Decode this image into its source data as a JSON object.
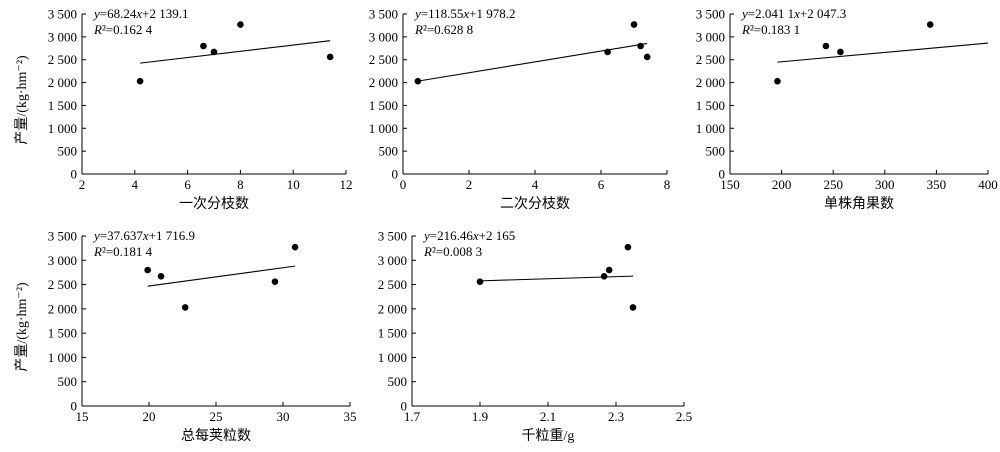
{
  "chart_data": [
    {
      "type": "scatter",
      "xlabel": "一次分枝数",
      "ylabel": "产量/(kg·hm⁻²)",
      "xlim": [
        2,
        12
      ],
      "ylim": [
        0,
        3500
      ],
      "xticks": [
        2,
        4,
        6,
        8,
        10,
        12
      ],
      "xtick_labels": [
        "2",
        "4",
        "6",
        "8",
        "10",
        "12"
      ],
      "yticks": [
        0,
        500,
        1000,
        1500,
        2000,
        2500,
        3000,
        3500
      ],
      "ytick_labels": [
        "0",
        "500",
        "1 000",
        "1 500",
        "2 000",
        "2 500",
        "3 000",
        "3 500"
      ],
      "points": [
        {
          "x": 4.2,
          "y": 2030
        },
        {
          "x": 6.6,
          "y": 2800
        },
        {
          "x": 7.0,
          "y": 2670
        },
        {
          "x": 8.0,
          "y": 3270
        },
        {
          "x": 11.4,
          "y": 2560
        }
      ],
      "fit": {
        "slope": 68.24,
        "intercept": 2139.1,
        "x_range": [
          4.2,
          11.4
        ]
      },
      "equation": "y=68.24x+2 139.1",
      "r2": "R²=0.162 4"
    },
    {
      "type": "scatter",
      "xlabel": "二次分枝数",
      "ylabel": "",
      "xlim": [
        0,
        8
      ],
      "ylim": [
        0,
        3500
      ],
      "xticks": [
        0,
        2,
        4,
        6,
        8
      ],
      "xtick_labels": [
        "0",
        "2",
        "4",
        "6",
        "8"
      ],
      "yticks": [
        0,
        500,
        1000,
        1500,
        2000,
        2500,
        3000,
        3500
      ],
      "ytick_labels": [
        "0",
        "500",
        "1 000",
        "1 500",
        "2 000",
        "2 500",
        "3 000",
        "3 500"
      ],
      "points": [
        {
          "x": 0.45,
          "y": 2030
        },
        {
          "x": 6.2,
          "y": 2670
        },
        {
          "x": 7.0,
          "y": 3270
        },
        {
          "x": 7.2,
          "y": 2800
        },
        {
          "x": 7.4,
          "y": 2560
        }
      ],
      "fit": {
        "slope": 118.55,
        "intercept": 1978.2,
        "x_range": [
          0.45,
          7.4
        ]
      },
      "equation": "y=118.55x+1 978.2",
      "r2": "R²=0.628 8"
    },
    {
      "type": "scatter",
      "xlabel": "单株角果数",
      "ylabel": "",
      "xlim": [
        150,
        400
      ],
      "ylim": [
        0,
        3500
      ],
      "xticks": [
        150,
        200,
        250,
        300,
        350,
        400
      ],
      "xtick_labels": [
        "150",
        "200",
        "250",
        "300",
        "350",
        "400"
      ],
      "yticks": [
        0,
        500,
        1000,
        1500,
        2000,
        2500,
        3000,
        3500
      ],
      "ytick_labels": [
        "0",
        "500",
        "1 000",
        "1 500",
        "2 000",
        "2 500",
        "3 000",
        "3 500"
      ],
      "points": [
        {
          "x": 196,
          "y": 2030
        },
        {
          "x": 243,
          "y": 2800
        },
        {
          "x": 257,
          "y": 2670
        },
        {
          "x": 344,
          "y": 3270
        }
      ],
      "fit": {
        "slope": 2.0411,
        "intercept": 2047.3,
        "x_range": [
          196,
          400
        ]
      },
      "equation": "y=2.041 1x+2 047.3",
      "r2": "R²=0.183 1"
    },
    {
      "type": "scatter",
      "xlabel": "总每荚粒数",
      "ylabel": "产量/(kg·hm⁻²)",
      "xlim": [
        15,
        35
      ],
      "ylim": [
        0,
        3500
      ],
      "xticks": [
        15,
        20,
        25,
        30,
        35
      ],
      "xtick_labels": [
        "15",
        "20",
        "25",
        "30",
        "35"
      ],
      "yticks": [
        0,
        500,
        1000,
        1500,
        2000,
        2500,
        3000,
        3500
      ],
      "ytick_labels": [
        "0",
        "500",
        "1 000",
        "1 500",
        "2 000",
        "2 500",
        "3 000",
        "3 500"
      ],
      "points": [
        {
          "x": 19.9,
          "y": 2800
        },
        {
          "x": 20.9,
          "y": 2670
        },
        {
          "x": 22.7,
          "y": 2030
        },
        {
          "x": 29.4,
          "y": 2560
        },
        {
          "x": 30.9,
          "y": 3270
        }
      ],
      "fit": {
        "slope": 37.637,
        "intercept": 1716.9,
        "x_range": [
          19.9,
          30.9
        ]
      },
      "equation": "y=37.637x+1 716.9",
      "r2": "R²=0.181 4"
    },
    {
      "type": "scatter",
      "xlabel": "千粒重/g",
      "ylabel": "",
      "xlim": [
        1.7,
        2.5
      ],
      "ylim": [
        0,
        3500
      ],
      "xticks": [
        1.7,
        1.9,
        2.1,
        2.3,
        2.5
      ],
      "xtick_labels": [
        "1.7",
        "1.9",
        "2.1",
        "2.3",
        "2.5"
      ],
      "yticks": [
        0,
        500,
        1000,
        1500,
        2000,
        2500,
        3000,
        3500
      ],
      "ytick_labels": [
        "0",
        "500",
        "1 000",
        "1 500",
        "2 000",
        "2 500",
        "3 000",
        "3 500"
      ],
      "points": [
        {
          "x": 1.9,
          "y": 2560
        },
        {
          "x": 2.265,
          "y": 2670
        },
        {
          "x": 2.28,
          "y": 2800
        },
        {
          "x": 2.335,
          "y": 3270
        },
        {
          "x": 2.35,
          "y": 2030
        }
      ],
      "fit": {
        "slope": 216.46,
        "intercept": 2165,
        "x_range": [
          1.9,
          2.35
        ]
      },
      "equation": "y=216.46x+2 165",
      "r2": "R²=0.008 3"
    }
  ]
}
